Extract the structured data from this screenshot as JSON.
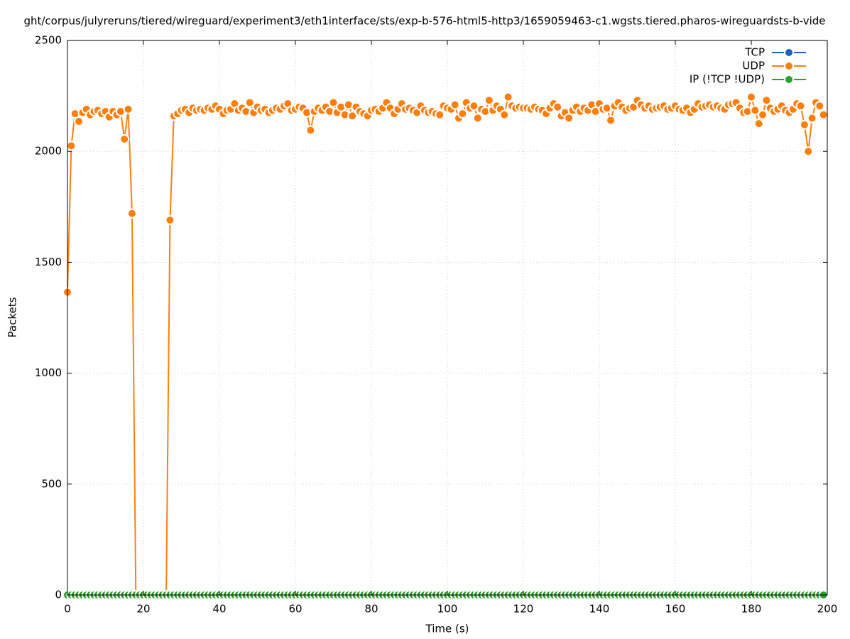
{
  "chart_data": {
    "type": "line",
    "title": "ght/corpus/julyreruns/tiered/wireguard/experiment3/eth1interface/sts/exp-b-576-html5-http3/1659059463-c1.wgsts.tiered.pharos-wireguardsts-b-vide",
    "xlabel": "Time (s)",
    "ylabel": "Packets",
    "xlim": [
      0,
      200
    ],
    "xticks": [
      0,
      20,
      40,
      60,
      80,
      100,
      120,
      140,
      160,
      180,
      200
    ],
    "ylim": [
      0,
      2500
    ],
    "yticks": [
      0,
      500,
      1000,
      1500,
      2000,
      2500
    ],
    "grid": true,
    "legend": "top-right",
    "x": [
      0,
      1,
      2,
      3,
      4,
      5,
      6,
      7,
      8,
      9,
      10,
      11,
      12,
      13,
      14,
      15,
      16,
      17,
      18,
      19,
      20,
      21,
      22,
      23,
      24,
      25,
      26,
      27,
      28,
      29,
      30,
      31,
      32,
      33,
      34,
      35,
      36,
      37,
      38,
      39,
      40,
      41,
      42,
      43,
      44,
      45,
      46,
      47,
      48,
      49,
      50,
      51,
      52,
      53,
      54,
      55,
      56,
      57,
      58,
      59,
      60,
      61,
      62,
      63,
      64,
      65,
      66,
      67,
      68,
      69,
      70,
      71,
      72,
      73,
      74,
      75,
      76,
      77,
      78,
      79,
      80,
      81,
      82,
      83,
      84,
      85,
      86,
      87,
      88,
      89,
      90,
      91,
      92,
      93,
      94,
      95,
      96,
      97,
      98,
      99,
      100,
      101,
      102,
      103,
      104,
      105,
      106,
      107,
      108,
      109,
      110,
      111,
      112,
      113,
      114,
      115,
      116,
      117,
      118,
      119,
      120,
      121,
      122,
      123,
      124,
      125,
      126,
      127,
      128,
      129,
      130,
      131,
      132,
      133,
      134,
      135,
      136,
      137,
      138,
      139,
      140,
      141,
      142,
      143,
      144,
      145,
      146,
      147,
      148,
      149,
      150,
      151,
      152,
      153,
      154,
      155,
      156,
      157,
      158,
      159,
      160,
      161,
      162,
      163,
      164,
      165,
      166,
      167,
      168,
      169,
      170,
      171,
      172,
      173,
      174,
      175,
      176,
      177,
      178,
      179,
      180,
      181,
      182,
      183,
      184,
      185,
      186,
      187,
      188,
      189,
      190,
      191,
      192,
      193,
      194,
      195,
      196,
      197,
      198,
      199
    ],
    "series": [
      {
        "name": "TCP",
        "color": "#1565c0",
        "values": [
          0,
          0,
          0,
          0,
          0,
          0,
          0,
          0,
          0,
          0,
          0,
          0,
          0,
          0,
          0,
          0,
          0,
          0,
          0,
          0,
          0,
          0,
          0,
          0,
          0,
          0,
          0,
          0,
          0,
          0,
          0,
          0,
          0,
          0,
          0,
          0,
          0,
          0,
          0,
          0,
          0,
          0,
          0,
          0,
          0,
          0,
          0,
          0,
          0,
          0,
          0,
          0,
          0,
          0,
          0,
          0,
          0,
          0,
          0,
          0,
          0,
          0,
          0,
          0,
          0,
          0,
          0,
          0,
          0,
          0,
          0,
          0,
          0,
          0,
          0,
          0,
          0,
          0,
          0,
          0,
          0,
          0,
          0,
          0,
          0,
          0,
          0,
          0,
          0,
          0,
          0,
          0,
          0,
          0,
          0,
          0,
          0,
          0,
          0,
          0,
          0,
          0,
          0,
          0,
          0,
          0,
          0,
          0,
          0,
          0,
          0,
          0,
          0,
          0,
          0,
          0,
          0,
          0,
          0,
          0,
          0,
          0,
          0,
          0,
          0,
          0,
          0,
          0,
          0,
          0,
          0,
          0,
          0,
          0,
          0,
          0,
          0,
          0,
          0,
          0,
          0,
          0,
          0,
          0,
          0,
          0,
          0,
          0,
          0,
          0,
          0,
          0,
          0,
          0,
          0,
          0,
          0,
          0,
          0,
          0,
          0,
          0,
          0,
          0,
          0,
          0,
          0,
          0,
          0,
          0,
          0,
          0,
          0,
          0,
          0,
          0,
          0,
          0,
          0,
          0,
          0,
          0,
          0,
          0,
          0,
          0,
          0,
          0,
          0,
          0,
          0,
          0,
          0,
          0,
          0,
          0,
          0,
          0,
          0,
          0
        ]
      },
      {
        "name": "UDP",
        "color": "#ff7f0e",
        "values": [
          1365,
          2025,
          2170,
          2135,
          2175,
          2190,
          2165,
          2180,
          2185,
          2170,
          2180,
          2155,
          2180,
          2165,
          2180,
          2055,
          2190,
          1720,
          0,
          0,
          0,
          0,
          0,
          0,
          0,
          0,
          0,
          1690,
          2160,
          2170,
          2185,
          2190,
          2175,
          2195,
          2185,
          2190,
          2185,
          2195,
          2190,
          2205,
          2190,
          2170,
          2185,
          2190,
          2215,
          2185,
          2195,
          2180,
          2220,
          2175,
          2200,
          2185,
          2190,
          2175,
          2185,
          2195,
          2190,
          2205,
          2215,
          2185,
          2190,
          2200,
          2195,
          2175,
          2095,
          2180,
          2195,
          2185,
          2200,
          2180,
          2220,
          2175,
          2200,
          2165,
          2210,
          2160,
          2200,
          2180,
          2170,
          2160,
          2185,
          2190,
          2180,
          2195,
          2220,
          2195,
          2170,
          2190,
          2215,
          2190,
          2195,
          2185,
          2175,
          2205,
          2185,
          2175,
          2180,
          2170,
          2165,
          2205,
          2195,
          2190,
          2210,
          2150,
          2170,
          2220,
          2195,
          2205,
          2150,
          2190,
          2180,
          2230,
          2185,
          2205,
          2190,
          2165,
          2245,
          2205,
          2195,
          2200,
          2195,
          2195,
          2190,
          2200,
          2190,
          2185,
          2170,
          2195,
          2215,
          2200,
          2160,
          2175,
          2150,
          2185,
          2200,
          2180,
          2195,
          2185,
          2210,
          2180,
          2215,
          2190,
          2195,
          2140,
          2205,
          2220,
          2200,
          2185,
          2195,
          2200,
          2230,
          2210,
          2195,
          2205,
          2190,
          2195,
          2200,
          2205,
          2190,
          2195,
          2205,
          2190,
          2185,
          2195,
          2175,
          2190,
          2215,
          2200,
          2205,
          2210,
          2200,
          2205,
          2195,
          2190,
          2210,
          2215,
          2220,
          2195,
          2175,
          2180,
          2245,
          2185,
          2125,
          2165,
          2230,
          2195,
          2180,
          2190,
          2205,
          2185,
          2175,
          2190,
          2215,
          2205,
          2120,
          2000,
          2150,
          2220,
          2205,
          2165
        ]
      },
      {
        "name": "IP (!TCP  !UDP)",
        "color": "#2ca02c",
        "values": [
          0,
          0,
          0,
          0,
          0,
          0,
          0,
          0,
          0,
          0,
          0,
          0,
          0,
          0,
          0,
          0,
          0,
          0,
          0,
          0,
          0,
          0,
          0,
          0,
          0,
          0,
          0,
          0,
          0,
          0,
          0,
          0,
          0,
          0,
          0,
          0,
          0,
          0,
          0,
          0,
          0,
          0,
          0,
          0,
          0,
          0,
          0,
          0,
          0,
          0,
          0,
          0,
          0,
          0,
          0,
          0,
          0,
          0,
          0,
          0,
          0,
          0,
          0,
          0,
          0,
          0,
          0,
          0,
          0,
          0,
          0,
          0,
          0,
          0,
          0,
          0,
          0,
          0,
          0,
          0,
          0,
          0,
          0,
          0,
          0,
          0,
          0,
          0,
          0,
          0,
          0,
          0,
          0,
          0,
          0,
          0,
          0,
          0,
          0,
          0,
          0,
          0,
          0,
          0,
          0,
          0,
          0,
          0,
          0,
          0,
          0,
          0,
          0,
          0,
          0,
          0,
          0,
          0,
          0,
          0,
          0,
          0,
          0,
          0,
          0,
          0,
          0,
          0,
          0,
          0,
          0,
          0,
          0,
          0,
          0,
          0,
          0,
          0,
          0,
          0,
          0,
          0,
          0,
          0,
          0,
          0,
          0,
          0,
          0,
          0,
          0,
          0,
          0,
          0,
          0,
          0,
          0,
          0,
          0,
          0,
          0,
          0,
          0,
          0,
          0,
          0,
          0,
          0,
          0,
          0,
          0,
          0,
          0,
          0,
          0,
          0,
          0,
          0,
          0,
          0,
          0,
          0,
          0,
          0,
          0,
          0,
          0,
          0,
          0,
          0,
          0,
          0,
          0,
          0,
          0,
          0,
          0,
          0,
          0,
          0
        ]
      }
    ]
  }
}
